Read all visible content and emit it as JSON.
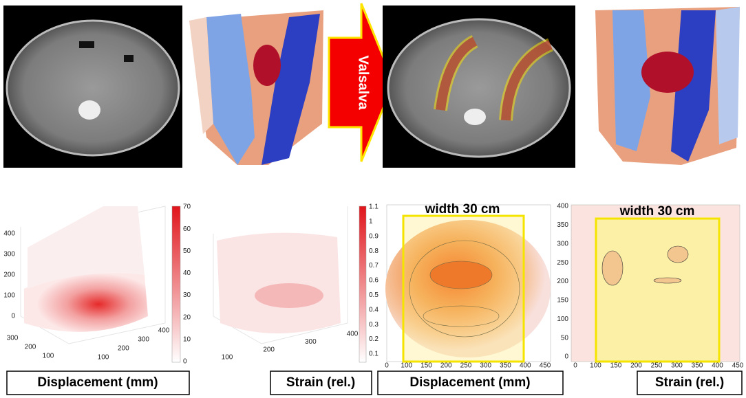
{
  "arrow_label": "Valsalva",
  "panels": [
    {
      "yticks": [
        400,
        300,
        200,
        100,
        0
      ],
      "xticks_left": [
        300,
        200,
        100
      ],
      "xticks_right": [
        100,
        200,
        300,
        400
      ],
      "colorbar_ticks": [
        70,
        60,
        50,
        40,
        30,
        20,
        10,
        0
      ],
      "caption": "Displacement (mm)"
    },
    {
      "xticks_right": [
        100,
        200,
        300,
        400
      ],
      "colorbar_ticks": [
        1.1,
        1,
        0.9,
        0.8,
        0.7,
        0.6,
        0.5,
        0.4,
        0.3,
        0.2,
        0.1
      ],
      "caption": "Strain (rel.)"
    },
    {
      "title": "width 30 cm",
      "xticks": [
        0,
        100,
        150,
        200,
        250,
        300,
        350,
        400,
        450
      ],
      "caption": "Displacement (mm)"
    },
    {
      "title": "width 30 cm",
      "yticks": [
        400,
        350,
        300,
        250,
        200,
        150,
        100,
        50,
        0
      ],
      "xticks": [
        0,
        100,
        150,
        200,
        250,
        300,
        350,
        400,
        450
      ],
      "caption": "Strain (rel.)"
    }
  ]
}
